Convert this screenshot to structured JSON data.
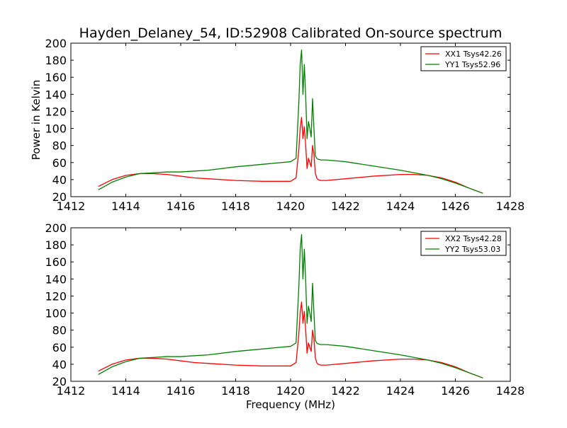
{
  "title": "Hayden_Delaney_54, ID:52908 Calibrated On-source spectrum",
  "chart_data": [
    {
      "type": "line",
      "title": "Hayden_Delaney_54, ID:52908 Calibrated On-source spectrum",
      "xlabel": "",
      "ylabel": "Power in Kelvin",
      "xlim": [
        1412,
        1428
      ],
      "ylim": [
        20,
        200
      ],
      "xticks": [
        1412,
        1414,
        1416,
        1418,
        1420,
        1422,
        1424,
        1426,
        1428
      ],
      "yticks": [
        20,
        40,
        60,
        80,
        100,
        120,
        140,
        160,
        180,
        200
      ],
      "grid": false,
      "legend_position": "top-right",
      "series": [
        {
          "name": "XX1 Tsys42.26",
          "color": "#ff0000",
          "x": [
            1413.0,
            1413.5,
            1414.0,
            1414.5,
            1415.0,
            1415.5,
            1416.0,
            1416.5,
            1417.0,
            1418.0,
            1419.0,
            1420.0,
            1420.2,
            1420.3,
            1420.35,
            1420.4,
            1420.45,
            1420.5,
            1420.55,
            1420.6,
            1420.65,
            1420.7,
            1420.75,
            1420.8,
            1420.85,
            1420.9,
            1420.95,
            1421.0,
            1421.1,
            1421.3,
            1422.0,
            1423.0,
            1424.0,
            1424.5,
            1425.0,
            1425.5,
            1426.0,
            1426.5,
            1427.0
          ],
          "y": [
            32,
            40,
            45,
            47,
            47,
            46,
            44,
            42,
            41,
            39,
            38,
            38,
            42,
            75,
            100,
            113,
            88,
            102,
            80,
            53,
            65,
            60,
            55,
            80,
            70,
            48,
            42,
            40,
            39,
            39,
            41,
            44,
            46,
            46,
            45,
            42,
            37,
            30,
            24
          ]
        },
        {
          "name": "YY1 Tsys52.96",
          "color": "#008000",
          "x": [
            1413.0,
            1413.5,
            1414.0,
            1414.5,
            1415.0,
            1415.5,
            1416.0,
            1416.5,
            1417.0,
            1418.0,
            1419.0,
            1420.0,
            1420.2,
            1420.3,
            1420.35,
            1420.4,
            1420.45,
            1420.5,
            1420.55,
            1420.6,
            1420.65,
            1420.7,
            1420.75,
            1420.8,
            1420.85,
            1420.9,
            1420.95,
            1421.0,
            1421.1,
            1421.3,
            1422.0,
            1423.0,
            1424.0,
            1424.5,
            1425.0,
            1425.5,
            1426.0,
            1426.5,
            1427.0
          ],
          "y": [
            28,
            37,
            43,
            47,
            48,
            49,
            49,
            50,
            51,
            55,
            58,
            61,
            65,
            130,
            175,
            192,
            140,
            175,
            138,
            88,
            108,
            100,
            90,
            135,
            100,
            68,
            65,
            64,
            63,
            63,
            61,
            56,
            51,
            48,
            45,
            41,
            36,
            30,
            24
          ]
        }
      ]
    },
    {
      "type": "line",
      "title": "",
      "xlabel": "Frequency (MHz)",
      "ylabel": "",
      "xlim": [
        1412,
        1428
      ],
      "ylim": [
        20,
        200
      ],
      "xticks": [
        1412,
        1414,
        1416,
        1418,
        1420,
        1422,
        1424,
        1426,
        1428
      ],
      "yticks": [
        20,
        40,
        60,
        80,
        100,
        120,
        140,
        160,
        180,
        200
      ],
      "grid": false,
      "legend_position": "top-right",
      "series": [
        {
          "name": "XX2 Tsys42.28",
          "color": "#ff0000",
          "x": [
            1413.0,
            1413.5,
            1414.0,
            1414.5,
            1415.0,
            1415.5,
            1416.0,
            1416.5,
            1417.0,
            1418.0,
            1419.0,
            1420.0,
            1420.2,
            1420.3,
            1420.35,
            1420.4,
            1420.45,
            1420.5,
            1420.55,
            1420.6,
            1420.65,
            1420.7,
            1420.75,
            1420.8,
            1420.85,
            1420.9,
            1420.95,
            1421.0,
            1421.1,
            1421.3,
            1422.0,
            1423.0,
            1424.0,
            1424.5,
            1425.0,
            1425.5,
            1426.0,
            1426.5,
            1427.0
          ],
          "y": [
            32,
            40,
            45,
            47,
            47,
            46,
            44,
            42,
            41,
            39,
            38,
            38,
            42,
            75,
            100,
            113,
            88,
            102,
            80,
            53,
            65,
            60,
            55,
            80,
            70,
            48,
            42,
            40,
            39,
            39,
            41,
            44,
            46,
            46,
            45,
            42,
            37,
            30,
            24
          ]
        },
        {
          "name": "YY2 Tsys53.03",
          "color": "#008000",
          "x": [
            1413.0,
            1413.5,
            1414.0,
            1414.5,
            1415.0,
            1415.5,
            1416.0,
            1416.5,
            1417.0,
            1418.0,
            1419.0,
            1420.0,
            1420.2,
            1420.3,
            1420.35,
            1420.4,
            1420.45,
            1420.5,
            1420.55,
            1420.6,
            1420.65,
            1420.7,
            1420.75,
            1420.8,
            1420.85,
            1420.9,
            1420.95,
            1421.0,
            1421.1,
            1421.3,
            1422.0,
            1423.0,
            1424.0,
            1424.5,
            1425.0,
            1425.5,
            1426.0,
            1426.5,
            1427.0
          ],
          "y": [
            28,
            37,
            43,
            47,
            48,
            49,
            49,
            50,
            51,
            55,
            58,
            61,
            65,
            130,
            175,
            192,
            140,
            175,
            138,
            88,
            108,
            100,
            90,
            135,
            100,
            68,
            65,
            64,
            63,
            63,
            61,
            56,
            51,
            48,
            45,
            41,
            36,
            30,
            24
          ]
        }
      ]
    }
  ]
}
